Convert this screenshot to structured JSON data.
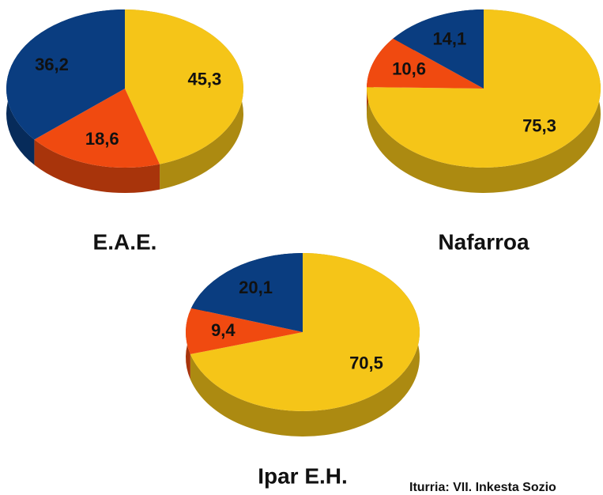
{
  "chart_data": [
    {
      "type": "pie",
      "title": "E.A.E.",
      "values": [
        45.3,
        18.6,
        36.2
      ],
      "value_labels": [
        "45,3",
        "18,6",
        "36,2"
      ],
      "colors": [
        "#f5c518",
        "#f04a10",
        "#0a3d80"
      ]
    },
    {
      "type": "pie",
      "title": "Nafarroa",
      "values": [
        75.3,
        10.6,
        14.1
      ],
      "value_labels": [
        "75,3",
        "10,6",
        "14,1"
      ],
      "colors": [
        "#f5c518",
        "#f04a10",
        "#0a3d80"
      ]
    },
    {
      "type": "pie",
      "title": "Ipar E.H.",
      "values": [
        70.5,
        9.4,
        20.1
      ],
      "value_labels": [
        "70,5",
        "9,4",
        "20,1"
      ],
      "colors": [
        "#f5c518",
        "#f04a10",
        "#0a3d80"
      ]
    }
  ],
  "source": "Iturria: VII. Inkesta Sozio"
}
